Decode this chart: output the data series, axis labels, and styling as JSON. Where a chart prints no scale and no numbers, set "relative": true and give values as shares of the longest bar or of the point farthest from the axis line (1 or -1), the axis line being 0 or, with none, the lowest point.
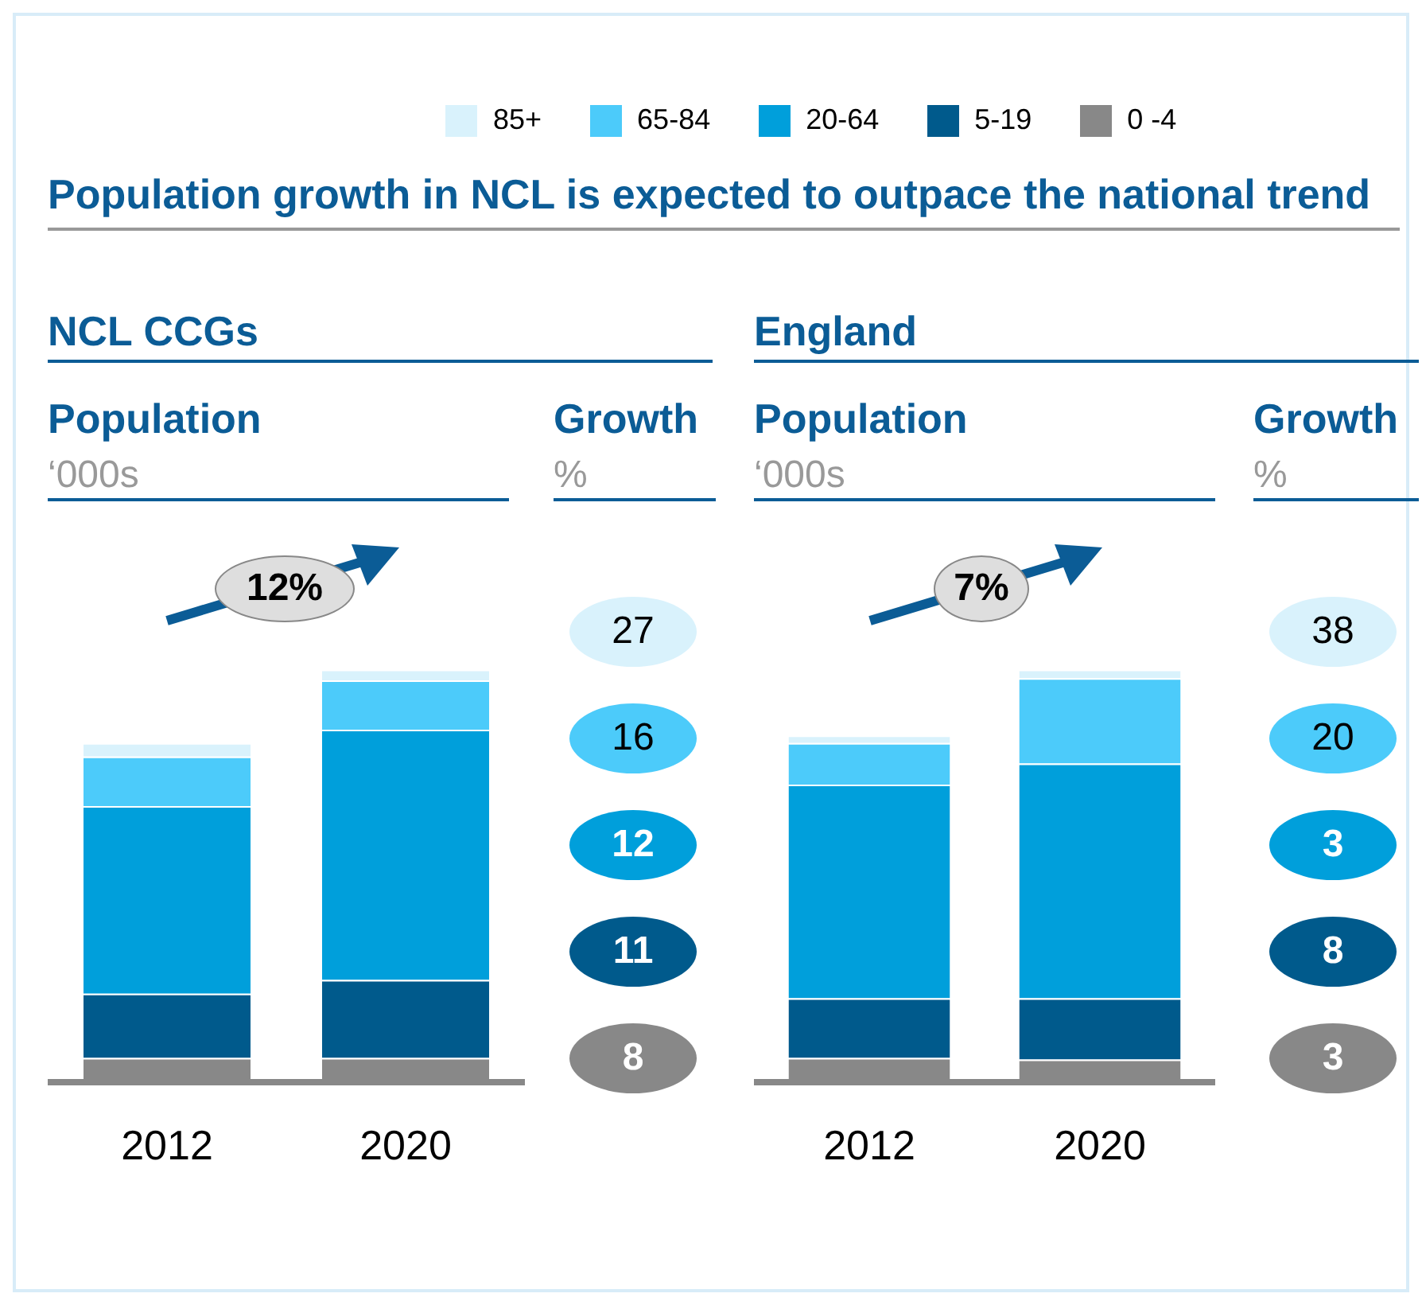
{
  "chart_data": [
    {
      "type": "bar",
      "title": "Population growth in NCL is expected to outpace the national trend",
      "subtitle": "NCL CCGs",
      "ylabel": "Population",
      "annotations": [
        "‘000s",
        "12%"
      ],
      "categories": [
        "2012",
        "2020"
      ],
      "stacked": true,
      "relative": true,
      "legend": "top",
      "series": [
        {
          "name": "0 -4",
          "color": "#888888",
          "values": [
            0.058,
            0.058
          ]
        },
        {
          "name": "5-19",
          "color": "#005a8c",
          "values": [
            0.156,
            0.189
          ]
        },
        {
          "name": "20-64",
          "color": "#009fdb",
          "values": [
            0.455,
            0.607
          ]
        },
        {
          "name": "65-84",
          "color": "#4ccbfa",
          "values": [
            0.12,
            0.12
          ]
        },
        {
          "name": "85+",
          "color": "#d9f2fc",
          "values": [
            0.033,
            0.026
          ]
        }
      ]
    },
    {
      "type": "other",
      "title": "Growth",
      "ylabel": "%",
      "values": [
        27,
        16,
        12,
        11,
        8
      ],
      "colors": [
        "#d9f2fc",
        "#4ccbfa",
        "#009fdb",
        "#005a8c",
        "#888888"
      ],
      "data_labels": true
    },
    {
      "type": "bar",
      "subtitle": "England",
      "ylabel": "Population",
      "annotations": [
        "‘000s",
        "7%"
      ],
      "categories": [
        "2012",
        "2020"
      ],
      "stacked": true,
      "relative": true,
      "series": [
        {
          "color": "#888888",
          "values": [
            0.058,
            0.054
          ]
        },
        {
          "color": "#005a8c",
          "values": [
            0.145,
            0.149
          ]
        },
        {
          "color": "#009fdb",
          "values": [
            0.518,
            0.569
          ]
        },
        {
          "color": "#4ccbfa",
          "values": [
            0.101,
            0.207
          ]
        },
        {
          "color": "#d9f2fc",
          "values": [
            0.018,
            0.021
          ]
        }
      ]
    },
    {
      "type": "other",
      "title": "Growth",
      "ylabel": "%",
      "values": [
        38,
        20,
        3,
        8,
        3
      ],
      "colors": [
        "#d9f2fc",
        "#4ccbfa",
        "#009fdb",
        "#005a8c",
        "#888888"
      ],
      "data_labels": true
    }
  ]
}
